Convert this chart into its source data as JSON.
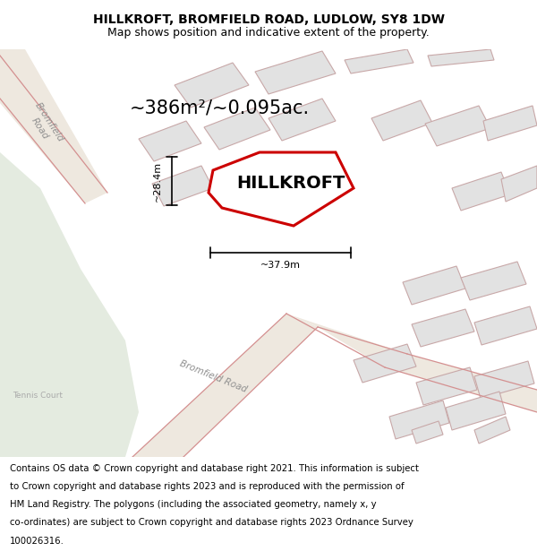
{
  "title": "HILLKROFT, BROMFIELD ROAD, LUDLOW, SY8 1DW",
  "subtitle": "Map shows position and indicative extent of the property.",
  "footer_lines": [
    "Contains OS data © Crown copyright and database right 2021. This information is subject",
    "to Crown copyright and database rights 2023 and is reproduced with the permission of",
    "HM Land Registry. The polygons (including the associated geometry, namely x, y",
    "co-ordinates) are subject to Crown copyright and database rights 2023 Ordnance Survey",
    "100026316."
  ],
  "area_label": "~386m²/~0.095ac.",
  "property_name": "HILLKROFT",
  "dim_width": "~37.9m",
  "dim_height": "~28.4m",
  "map_bg": "#f0ede6",
  "green_area_color": "#e4ebe0",
  "building_face": "#e2e2e2",
  "building_edge": "#c8a8a8",
  "road_fill": "#eee8df",
  "road_line": "#d49090",
  "property_face": "#ffffff",
  "property_edge": "#cc0000",
  "title_fontsize": 10,
  "subtitle_fontsize": 9,
  "footer_fontsize": 7.3,
  "area_fontsize": 15,
  "propname_fontsize": 14,
  "dim_fontsize": 8,
  "road_label_color": "#909090",
  "tennis_label_color": "#aaaaaa"
}
